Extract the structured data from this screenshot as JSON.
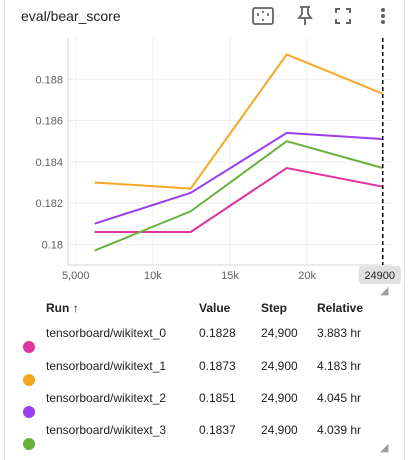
{
  "header": {
    "title": "eval/bear_score",
    "icons": [
      "fit-domain-icon",
      "pin-icon",
      "fullscreen-icon",
      "more-vert-icon"
    ]
  },
  "chart_data": {
    "type": "line",
    "x_ticks": [
      "5,000",
      "10k",
      "15k",
      "20k"
    ],
    "y_ticks": [
      "0.18",
      "0.182",
      "0.184",
      "0.186",
      "0.188"
    ],
    "hover_x_label": "24900",
    "ylim": [
      0.179,
      0.19
    ],
    "xlim": [
      4500,
      25500
    ],
    "series": [
      {
        "name": "tensorboard/wikitext_0",
        "color": "#e0339d",
        "x": [
          6225,
          12450,
          18675,
          24900
        ],
        "y": [
          0.1806,
          0.1806,
          0.1837,
          0.1828
        ]
      },
      {
        "name": "tensorboard/wikitext_1",
        "color": "#f5a623",
        "x": [
          6225,
          12450,
          18675,
          24900
        ],
        "y": [
          0.183,
          0.1827,
          0.1892,
          0.1873
        ]
      },
      {
        "name": "tensorboard/wikitext_2",
        "color": "#9c3cf0",
        "x": [
          6225,
          12450,
          18675,
          24900
        ],
        "y": [
          0.181,
          0.1825,
          0.1854,
          0.1851
        ]
      },
      {
        "name": "tensorboard/wikitext_3",
        "color": "#6ab03c",
        "x": [
          6225,
          12450,
          18675,
          24900
        ],
        "y": [
          0.1797,
          0.1816,
          0.185,
          0.1837
        ]
      }
    ]
  },
  "table": {
    "columns": {
      "run": "Run ↑",
      "value": "Value",
      "step": "Step",
      "relative": "Relative"
    },
    "rows": [
      {
        "run": "tensorboard/wikitext_0",
        "value": "0.1828",
        "step": "24,900",
        "relative": "3.883 hr",
        "color": "#e0339d"
      },
      {
        "run": "tensorboard/wikitext_1",
        "value": "0.1873",
        "step": "24,900",
        "relative": "4.183 hr",
        "color": "#f5a623"
      },
      {
        "run": "tensorboard/wikitext_2",
        "value": "0.1851",
        "step": "24,900",
        "relative": "4.045 hr",
        "color": "#9c3cf0"
      },
      {
        "run": "tensorboard/wikitext_3",
        "value": "0.1837",
        "step": "24,900",
        "relative": "4.039 hr",
        "color": "#6ab03c"
      }
    ]
  }
}
